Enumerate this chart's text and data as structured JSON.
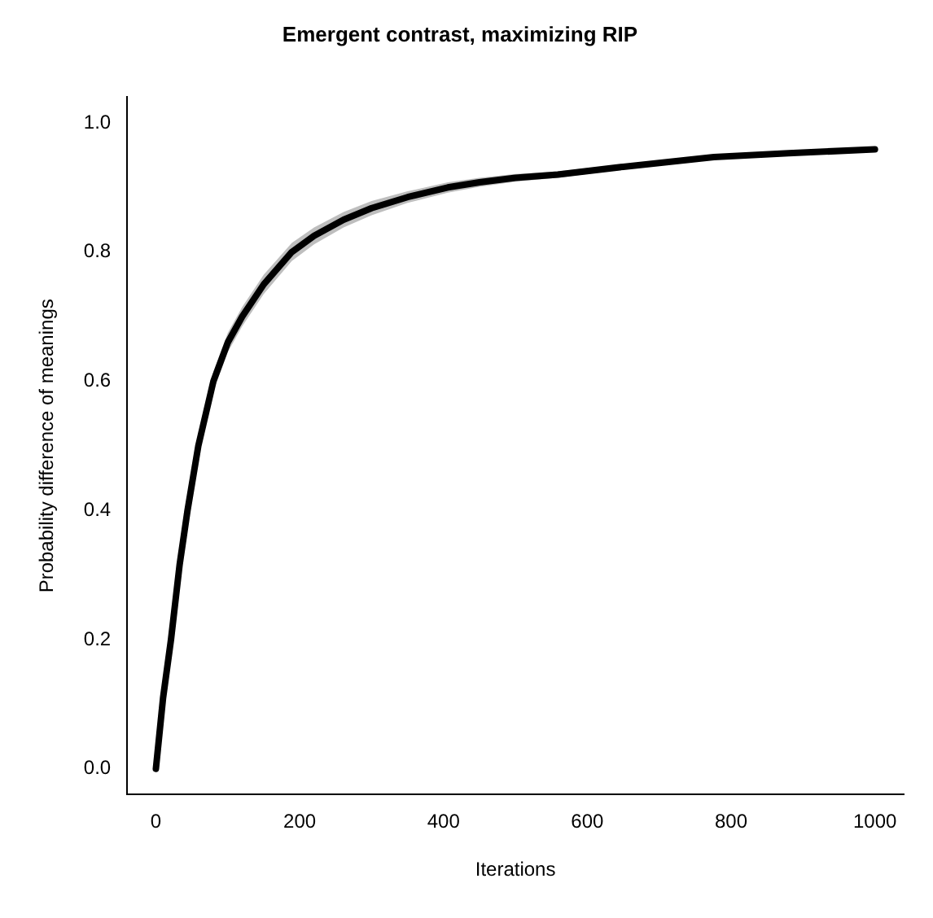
{
  "chart_data": {
    "type": "line",
    "title": "Emergent contrast, maximizing RIP",
    "xlabel": "Iterations",
    "ylabel": "Probability difference of meanings",
    "xlim": [
      -40,
      1040
    ],
    "xticks": [
      0,
      200,
      400,
      600,
      800,
      1000
    ],
    "ylim": [
      -0.04,
      1.04
    ],
    "yticks": [
      {
        "value": 0,
        "label": "0.0"
      },
      {
        "value": 0.2,
        "label": "0.2"
      },
      {
        "value": 0.4,
        "label": "0.4"
      },
      {
        "value": 0.6,
        "label": "0.6"
      },
      {
        "value": 0.8,
        "label": "0.8"
      },
      {
        "value": 1,
        "label": "1.0"
      }
    ],
    "grid": false,
    "legend": false,
    "marker": "none",
    "line_style": "solid",
    "series": [
      {
        "color": "#000000",
        "x": [
          0,
          10,
          21,
          33,
          44,
          59,
          80,
          100,
          120,
          150,
          189,
          220,
          261,
          300,
          350,
          406,
          450,
          500,
          559,
          650,
          776,
          880,
          1000
        ],
        "values": [
          0,
          0.11,
          0.2,
          0.316,
          0.4,
          0.5,
          0.6,
          0.66,
          0.7,
          0.75,
          0.8,
          0.825,
          0.85,
          0.868,
          0.885,
          0.9,
          0.908,
          0.915,
          0.92,
          0.932,
          0.947,
          0.953,
          0.959
        ],
        "lower": [
          0,
          0.105,
          0.192,
          0.306,
          0.388,
          0.487,
          0.585,
          0.645,
          0.685,
          0.735,
          0.786,
          0.812,
          0.838,
          0.857,
          0.876,
          0.892,
          0.901,
          0.909,
          0.915,
          0.928,
          0.944,
          0.951,
          0.957
        ],
        "upper": [
          0,
          0.115,
          0.208,
          0.326,
          0.412,
          0.513,
          0.615,
          0.675,
          0.715,
          0.765,
          0.814,
          0.838,
          0.862,
          0.879,
          0.894,
          0.908,
          0.915,
          0.921,
          0.925,
          0.936,
          0.95,
          0.955,
          0.961
        ]
      }
    ]
  }
}
